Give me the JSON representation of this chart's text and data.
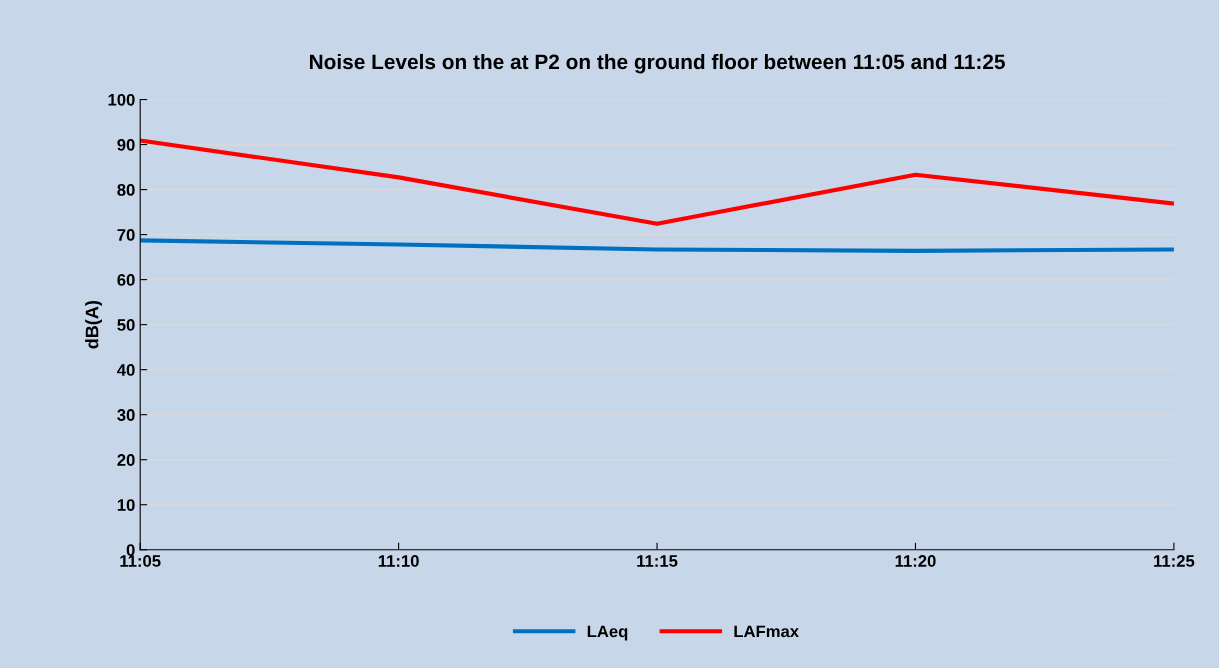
{
  "chart_data": {
    "type": "line",
    "title": "Noise Levels on the at P2 on the ground floor between 11:05 and 11:25",
    "ylabel": "dB(A)",
    "categories": [
      "11:05",
      "11:10",
      "11:15",
      "11:20",
      "11:25"
    ],
    "series": [
      {
        "name": "LAeq",
        "color": "#0070c0",
        "values": [
          68.7,
          67.8,
          66.7,
          66.4,
          66.7
        ]
      },
      {
        "name": "LAFmax",
        "color": "#ff0000",
        "values": [
          90.9,
          82.7,
          72.4,
          83.3,
          76.9
        ]
      }
    ],
    "ylim": [
      0,
      100
    ],
    "yticks": [
      0,
      10,
      20,
      30,
      40,
      50,
      60,
      70,
      80,
      90,
      100
    ],
    "grid": "y",
    "legend": "bottom",
    "marker": "none",
    "line_style": "solid"
  }
}
